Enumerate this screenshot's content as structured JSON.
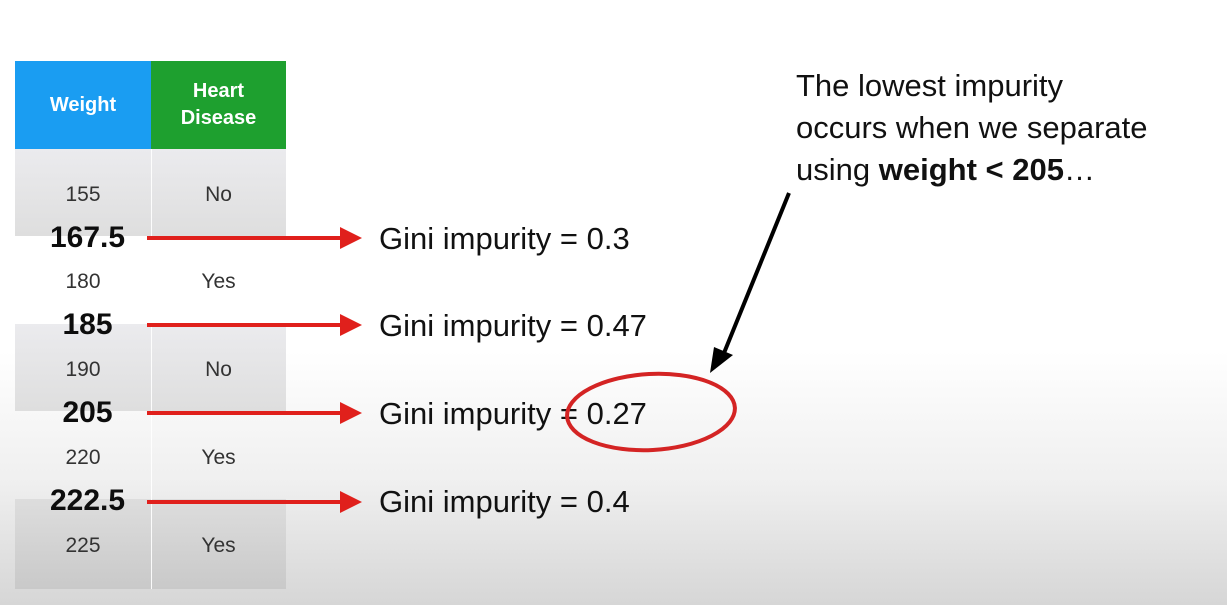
{
  "table": {
    "headers": {
      "weight": "Weight",
      "heart_disease": "Heart\nDisease"
    },
    "rows": [
      {
        "weight": "155",
        "heart_disease": "No"
      },
      {
        "weight": "180",
        "heart_disease": "Yes"
      },
      {
        "weight": "190",
        "heart_disease": "No"
      },
      {
        "weight": "220",
        "heart_disease": "Yes"
      },
      {
        "weight": "225",
        "heart_disease": "Yes"
      }
    ],
    "colors": {
      "weight_header": "#1a9df2",
      "heart_disease_header": "#1ea02f"
    }
  },
  "thresholds": [
    {
      "value": "167.5",
      "gini": "Gini impurity = 0.3"
    },
    {
      "value": "185",
      "gini": "Gini impurity = 0.47"
    },
    {
      "value": "205",
      "gini": "Gini impurity = 0.27"
    },
    {
      "value": "222.5",
      "gini": "Gini impurity = 0.4"
    }
  ],
  "note": {
    "line1": "The lowest impurity",
    "line2": "occurs when we separate",
    "prefix": "using ",
    "bold": "weight < 205",
    "suffix": "…"
  },
  "colors": {
    "arrow": "#e0201c",
    "highlight_circle": "#d42424",
    "pointer_arrow": "#000000"
  }
}
